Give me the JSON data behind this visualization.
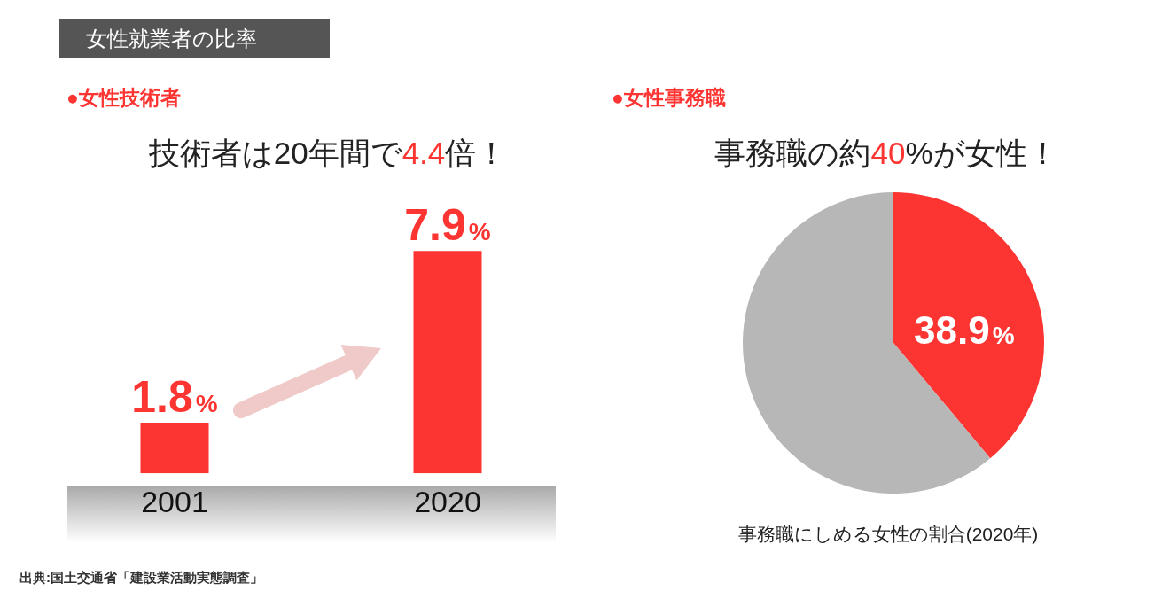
{
  "chart_data": [
    {
      "type": "bar",
      "title": "技術者は20年間で4.4倍！",
      "subtitle": "●女性技術者",
      "categories": [
        "2001",
        "2020"
      ],
      "values": [
        1.8,
        7.9
      ],
      "color": "#fc3532",
      "value_labels": [
        "1.8%",
        "7.9%"
      ],
      "annotations": [
        "女性就業者の比率",
        "出典:国土交通省「建設業活動実態調査」"
      ]
    },
    {
      "type": "pie",
      "title": "事務職の約40%が女性！",
      "subtitle": "●女性事務職",
      "categories": [
        null,
        null
      ],
      "values": [
        38.9,
        61.1
      ],
      "colors": [
        "#fc3532",
        "#b7b7b7"
      ],
      "value_labels": [
        "38.9%",
        null
      ],
      "annotations": [
        "事務職にしめる女性の割合(2020年)"
      ]
    }
  ]
}
